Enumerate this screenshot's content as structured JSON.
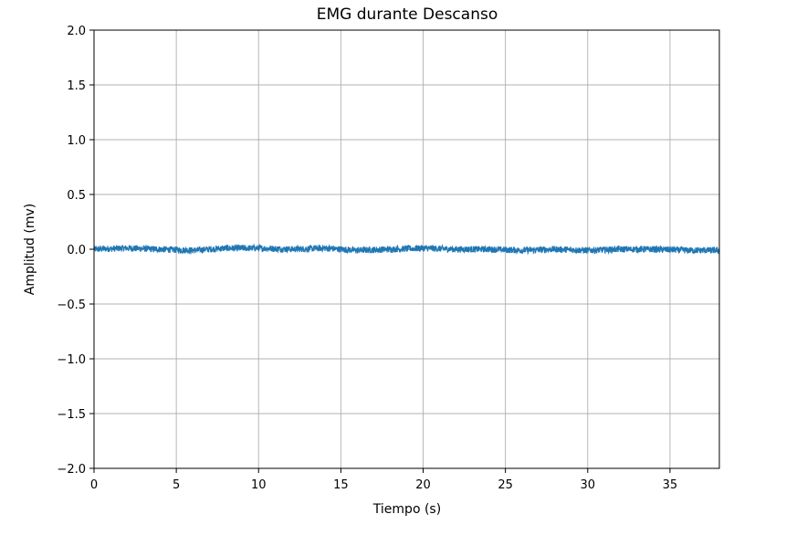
{
  "chart_data": {
    "type": "line",
    "title": "EMG durante Descanso",
    "xlabel": "Tiempo (s)",
    "ylabel": "Amplitud (mv)",
    "xlim": [
      0,
      38
    ],
    "ylim": [
      -2.0,
      2.0
    ],
    "grid": true,
    "xticks": [
      0,
      5,
      10,
      15,
      20,
      25,
      30,
      35
    ],
    "xtick_labels": [
      "0",
      "5",
      "10",
      "15",
      "20",
      "25",
      "30",
      "35"
    ],
    "yticks": [
      -2.0,
      -1.5,
      -1.0,
      -0.5,
      0.0,
      0.5,
      1.0,
      1.5,
      2.0
    ],
    "ytick_labels": [
      "−2.0",
      "−1.5",
      "−1.0",
      "−0.5",
      "0.0",
      "0.5",
      "1.0",
      "1.5",
      "2.0"
    ],
    "series": [
      {
        "color": "#1f77b4",
        "x": [
          0,
          2,
          4,
          6,
          8,
          10,
          12,
          14,
          16,
          18,
          20,
          22,
          24,
          26,
          28,
          30,
          32,
          34,
          36,
          38
        ],
        "y": [
          0.0,
          0.01,
          0.0,
          -0.01,
          0.01,
          0.01,
          0.0,
          0.01,
          -0.01,
          0.0,
          0.01,
          0.0,
          0.0,
          -0.01,
          0.0,
          -0.01,
          0.0,
          0.0,
          -0.01,
          -0.01
        ],
        "noise_amplitude": 0.03
      }
    ]
  }
}
